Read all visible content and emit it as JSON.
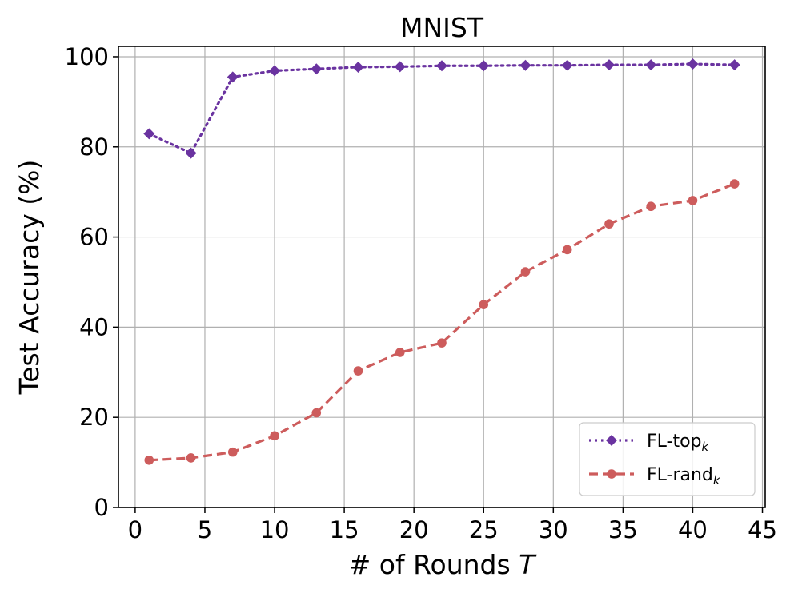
{
  "chart_data": {
    "type": "line",
    "title": "MNIST",
    "xlabel": "# of Rounds",
    "xlabel_var": "T",
    "ylabel": "Test Accuracy (%)",
    "xlim": [
      -1.2,
      45.2
    ],
    "ylim": [
      0,
      102.3
    ],
    "xticks": [
      0,
      5,
      10,
      15,
      20,
      25,
      30,
      35,
      40,
      45
    ],
    "yticks": [
      0,
      20,
      40,
      60,
      80,
      100
    ],
    "grid": true,
    "legend_position": "bottom-right",
    "x": [
      1,
      4,
      7,
      10,
      13,
      16,
      19,
      22,
      25,
      28,
      31,
      34,
      37,
      40,
      43
    ],
    "series": [
      {
        "name": "FL-top",
        "subscript": "k",
        "color": "#6a33a0",
        "line_style": "dotted",
        "marker": "diamond",
        "values": [
          82.9,
          78.6,
          95.5,
          96.9,
          97.3,
          97.7,
          97.8,
          98.0,
          98.0,
          98.1,
          98.1,
          98.2,
          98.2,
          98.4,
          98.2
        ]
      },
      {
        "name": "FL-rand",
        "subscript": "k",
        "color": "#cd5c5c",
        "line_style": "dashed",
        "marker": "circle",
        "values": [
          10.5,
          11.0,
          12.3,
          15.9,
          21.0,
          30.3,
          34.4,
          36.5,
          45.0,
          52.3,
          57.2,
          62.9,
          66.8,
          68.1,
          71.8
        ]
      }
    ]
  }
}
